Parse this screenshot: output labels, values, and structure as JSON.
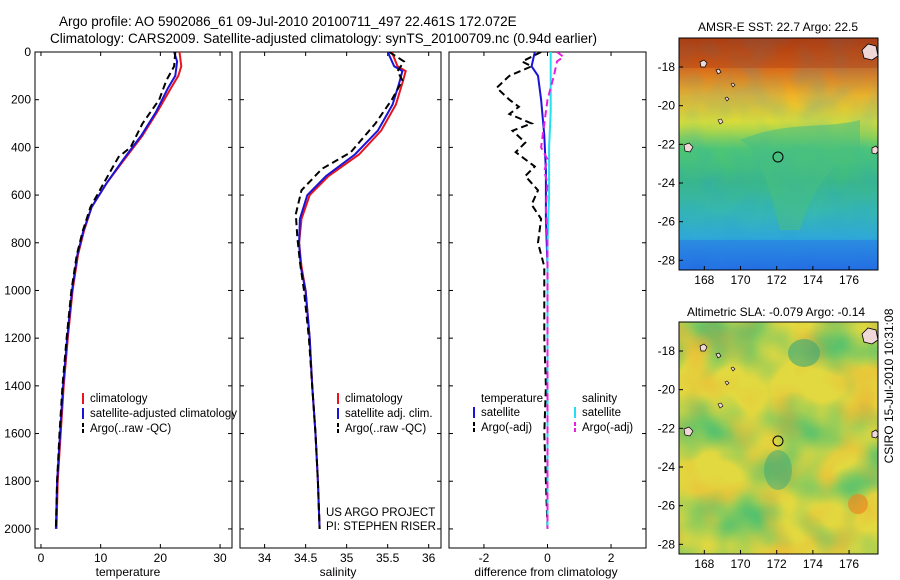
{
  "header": {
    "line1": "Argo profile: AO 5902086_61 09-Jul-2010 20100711_497 22.461S 172.072E",
    "line2": "Climatology: CARS2009. Satellite-adjusted climatology: synTS_20100709.nc (0.94d earlier)"
  },
  "side_text": "CSIRO 15-Jul-2010 10:31:08",
  "colors": {
    "red": "#e8141e",
    "blue": "#1a14d8",
    "black": "#000000",
    "cyan": "#22e0f0",
    "magenta": "#e81ee0"
  },
  "chart_data": [
    {
      "id": "temperature",
      "type": "line",
      "xlabel": "temperature",
      "xlim": [
        -1,
        32
      ],
      "ylim": [
        0,
        2080
      ],
      "y_reversed": true,
      "xticks": [
        0,
        10,
        20,
        30
      ],
      "yticks": [
        0,
        200,
        400,
        600,
        800,
        1000,
        1200,
        1400,
        1600,
        1800,
        2000
      ],
      "legend": {
        "position": "lower-right",
        "entries": [
          "climatology",
          "satellite-adjusted climatology",
          "Argo(..raw -QC)"
        ]
      },
      "series": [
        {
          "name": "climatology",
          "color": "red",
          "dash": "",
          "points": [
            [
              23.2,
              0
            ],
            [
              23.5,
              60
            ],
            [
              23.0,
              100
            ],
            [
              21.8,
              150
            ],
            [
              19.5,
              250
            ],
            [
              17.0,
              350
            ],
            [
              14.0,
              450
            ],
            [
              11.0,
              550
            ],
            [
              8.5,
              650
            ],
            [
              7.2,
              750
            ],
            [
              6.2,
              850
            ],
            [
              5.3,
              1000
            ],
            [
              4.5,
              1200
            ],
            [
              3.8,
              1400
            ],
            [
              3.3,
              1600
            ],
            [
              2.8,
              1800
            ],
            [
              2.6,
              2000
            ]
          ]
        },
        {
          "name": "satellite-adjusted climatology",
          "color": "blue",
          "dash": "",
          "points": [
            [
              22.3,
              0
            ],
            [
              22.8,
              40
            ],
            [
              22.5,
              100
            ],
            [
              21.3,
              150
            ],
            [
              19.3,
              250
            ],
            [
              16.8,
              350
            ],
            [
              13.8,
              450
            ],
            [
              11.0,
              550
            ],
            [
              8.5,
              650
            ],
            [
              7.1,
              750
            ],
            [
              6.1,
              850
            ],
            [
              5.2,
              1000
            ],
            [
              4.4,
              1200
            ],
            [
              3.7,
              1400
            ],
            [
              3.2,
              1600
            ],
            [
              2.7,
              1800
            ],
            [
              2.5,
              2000
            ]
          ]
        },
        {
          "name": "Argo(..raw -QC)",
          "color": "black",
          "dash": "7,4",
          "points": [
            [
              22.5,
              0
            ],
            [
              22.3,
              60
            ],
            [
              21.0,
              120
            ],
            [
              19.8,
              200
            ],
            [
              17.0,
              300
            ],
            [
              15.0,
              400
            ],
            [
              13.0,
              440
            ],
            [
              10.5,
              550
            ],
            [
              8.3,
              650
            ],
            [
              7.0,
              750
            ],
            [
              6.0,
              850
            ],
            [
              5.1,
              1000
            ],
            [
              4.3,
              1200
            ],
            [
              3.6,
              1400
            ],
            [
              3.1,
              1600
            ],
            [
              2.7,
              1800
            ],
            [
              2.5,
              2000
            ]
          ]
        }
      ]
    },
    {
      "id": "salinity",
      "type": "line",
      "xlabel": "salinity",
      "xlim": [
        33.7,
        36.15
      ],
      "ylim": [
        0,
        2080
      ],
      "y_reversed": true,
      "xticks": [
        34,
        34.5,
        35,
        35.5,
        36
      ],
      "yticks": [
        0,
        200,
        400,
        600,
        800,
        1000,
        1200,
        1400,
        1600,
        1800,
        2000
      ],
      "legend": {
        "position": "lower-right",
        "entries": [
          "climatology",
          "satellite adj. clim.",
          "Argo(..raw -QC)"
        ]
      },
      "annotation": [
        "US ARGO PROJECT",
        "PI: STEPHEN RISER"
      ],
      "series": [
        {
          "name": "climatology",
          "color": "red",
          "dash": "",
          "points": [
            [
              35.55,
              0
            ],
            [
              35.62,
              60
            ],
            [
              35.72,
              80
            ],
            [
              35.68,
              130
            ],
            [
              35.6,
              220
            ],
            [
              35.42,
              330
            ],
            [
              35.15,
              430
            ],
            [
              34.78,
              520
            ],
            [
              34.55,
              600
            ],
            [
              34.45,
              700
            ],
            [
              34.42,
              800
            ],
            [
              34.45,
              900
            ],
            [
              34.5,
              1000
            ],
            [
              34.55,
              1200
            ],
            [
              34.58,
              1400
            ],
            [
              34.62,
              1600
            ],
            [
              34.65,
              1800
            ],
            [
              34.67,
              2000
            ]
          ]
        },
        {
          "name": "satellite adj. clim.",
          "color": "blue",
          "dash": "",
          "points": [
            [
              35.5,
              0
            ],
            [
              35.58,
              60
            ],
            [
              35.68,
              80
            ],
            [
              35.64,
              130
            ],
            [
              35.56,
              220
            ],
            [
              35.38,
              330
            ],
            [
              35.1,
              430
            ],
            [
              34.75,
              520
            ],
            [
              34.52,
              600
            ],
            [
              34.43,
              700
            ],
            [
              34.42,
              800
            ],
            [
              34.44,
              900
            ],
            [
              34.5,
              1000
            ],
            [
              34.55,
              1200
            ],
            [
              34.58,
              1400
            ],
            [
              34.62,
              1600
            ],
            [
              34.65,
              1800
            ],
            [
              34.67,
              2000
            ]
          ]
        },
        {
          "name": "Argo(..raw -QC)",
          "color": "black",
          "dash": "7,4",
          "points": [
            [
              35.52,
              0
            ],
            [
              35.7,
              40
            ],
            [
              35.62,
              80
            ],
            [
              35.68,
              120
            ],
            [
              35.55,
              200
            ],
            [
              35.35,
              300
            ],
            [
              35.05,
              420
            ],
            [
              34.7,
              490
            ],
            [
              34.45,
              580
            ],
            [
              34.38,
              680
            ],
            [
              34.4,
              780
            ],
            [
              34.43,
              880
            ],
            [
              34.48,
              1000
            ],
            [
              34.54,
              1200
            ],
            [
              34.58,
              1400
            ],
            [
              34.62,
              1600
            ],
            [
              34.65,
              1800
            ],
            [
              34.67,
              2000
            ]
          ]
        }
      ]
    },
    {
      "id": "difference",
      "type": "line",
      "xlabel": "difference from climatology",
      "xlim": [
        -3.1,
        3.1
      ],
      "ylim": [
        0,
        2080
      ],
      "y_reversed": true,
      "xticks": [
        -2,
        0,
        2
      ],
      "yticks": [
        0,
        200,
        400,
        600,
        800,
        1000,
        1200,
        1400,
        1600,
        1800,
        2000
      ],
      "legend": {
        "position": "lower-right",
        "groups": [
          {
            "header": "temperature",
            "entries": [
              "satellite",
              "Argo(-adj)"
            ]
          },
          {
            "header": "salinity",
            "entries": [
              "satellite",
              "Argo(-adj)"
            ]
          }
        ]
      },
      "series": [
        {
          "name": "temperature satellite",
          "color": "blue",
          "dash": "",
          "points": [
            [
              -0.4,
              0
            ],
            [
              -0.5,
              60
            ],
            [
              -0.3,
              100
            ],
            [
              -0.2,
              200
            ],
            [
              -0.1,
              350
            ],
            [
              -0.05,
              500
            ],
            [
              -0.05,
              700
            ],
            [
              0.0,
              900
            ],
            [
              0.0,
              1200
            ],
            [
              0.0,
              2000
            ]
          ]
        },
        {
          "name": "temperature Argo(-adj)",
          "color": "black",
          "dash": "7,4",
          "points": [
            [
              -0.2,
              0
            ],
            [
              -0.5,
              20
            ],
            [
              -0.8,
              40
            ],
            [
              -0.5,
              60
            ],
            [
              -1.2,
              100
            ],
            [
              -1.6,
              150
            ],
            [
              -1.2,
              200
            ],
            [
              -0.9,
              230
            ],
            [
              -1.2,
              260
            ],
            [
              -0.5,
              300
            ],
            [
              -1.1,
              330
            ],
            [
              -0.7,
              380
            ],
            [
              -1.0,
              420
            ],
            [
              -0.4,
              480
            ],
            [
              -0.7,
              520
            ],
            [
              -0.3,
              580
            ],
            [
              -0.5,
              640
            ],
            [
              -0.2,
              700
            ],
            [
              -0.3,
              800
            ],
            [
              -0.1,
              900
            ],
            [
              -0.1,
              1200
            ],
            [
              -0.05,
              1400
            ],
            [
              -0.1,
              1600
            ],
            [
              -0.05,
              1800
            ],
            [
              0.0,
              2000
            ]
          ]
        },
        {
          "name": "salinity satellite",
          "color": "cyan",
          "dash": "",
          "points": [
            [
              0.1,
              0
            ],
            [
              0.1,
              100
            ],
            [
              0.1,
              250
            ],
            [
              0.05,
              400
            ],
            [
              0.05,
              600
            ],
            [
              0.0,
              800
            ],
            [
              0.0,
              1000
            ],
            [
              0.0,
              2000
            ]
          ]
        },
        {
          "name": "salinity Argo(-adj)",
          "color": "magenta",
          "dash": "7,4",
          "points": [
            [
              0.3,
              0
            ],
            [
              0.5,
              20
            ],
            [
              0.3,
              40
            ],
            [
              0.2,
              100
            ],
            [
              0.0,
              200
            ],
            [
              -0.1,
              300
            ],
            [
              -0.2,
              400
            ],
            [
              0.0,
              450
            ],
            [
              -0.1,
              500
            ],
            [
              0.0,
              550
            ],
            [
              -0.05,
              650
            ],
            [
              0.0,
              800
            ],
            [
              0.0,
              2000
            ]
          ]
        }
      ]
    },
    {
      "id": "sst_map",
      "type": "heatmap",
      "title": "AMSR-E SST: 22.7 Argo: 22.5",
      "xticks": [
        168,
        170,
        172,
        174,
        176
      ],
      "yticks": [
        -18,
        -20,
        -22,
        -24,
        -26,
        -28
      ],
      "xlim": [
        166.6,
        177.6
      ],
      "ylim": [
        -28.5,
        -16.5
      ],
      "argo_position": [
        172.07,
        -22.46
      ],
      "palette": "jet"
    },
    {
      "id": "sla_map",
      "type": "heatmap",
      "title": "Altimetric SLA: -0.079 Argo: -0.14",
      "xticks": [
        168,
        170,
        172,
        174,
        176
      ],
      "yticks": [
        -18,
        -20,
        -22,
        -24,
        -26,
        -28
      ],
      "xlim": [
        166.6,
        177.6
      ],
      "ylim": [
        -28.5,
        -16.5
      ],
      "argo_position": [
        172.07,
        -22.46
      ],
      "palette": "jet"
    }
  ]
}
